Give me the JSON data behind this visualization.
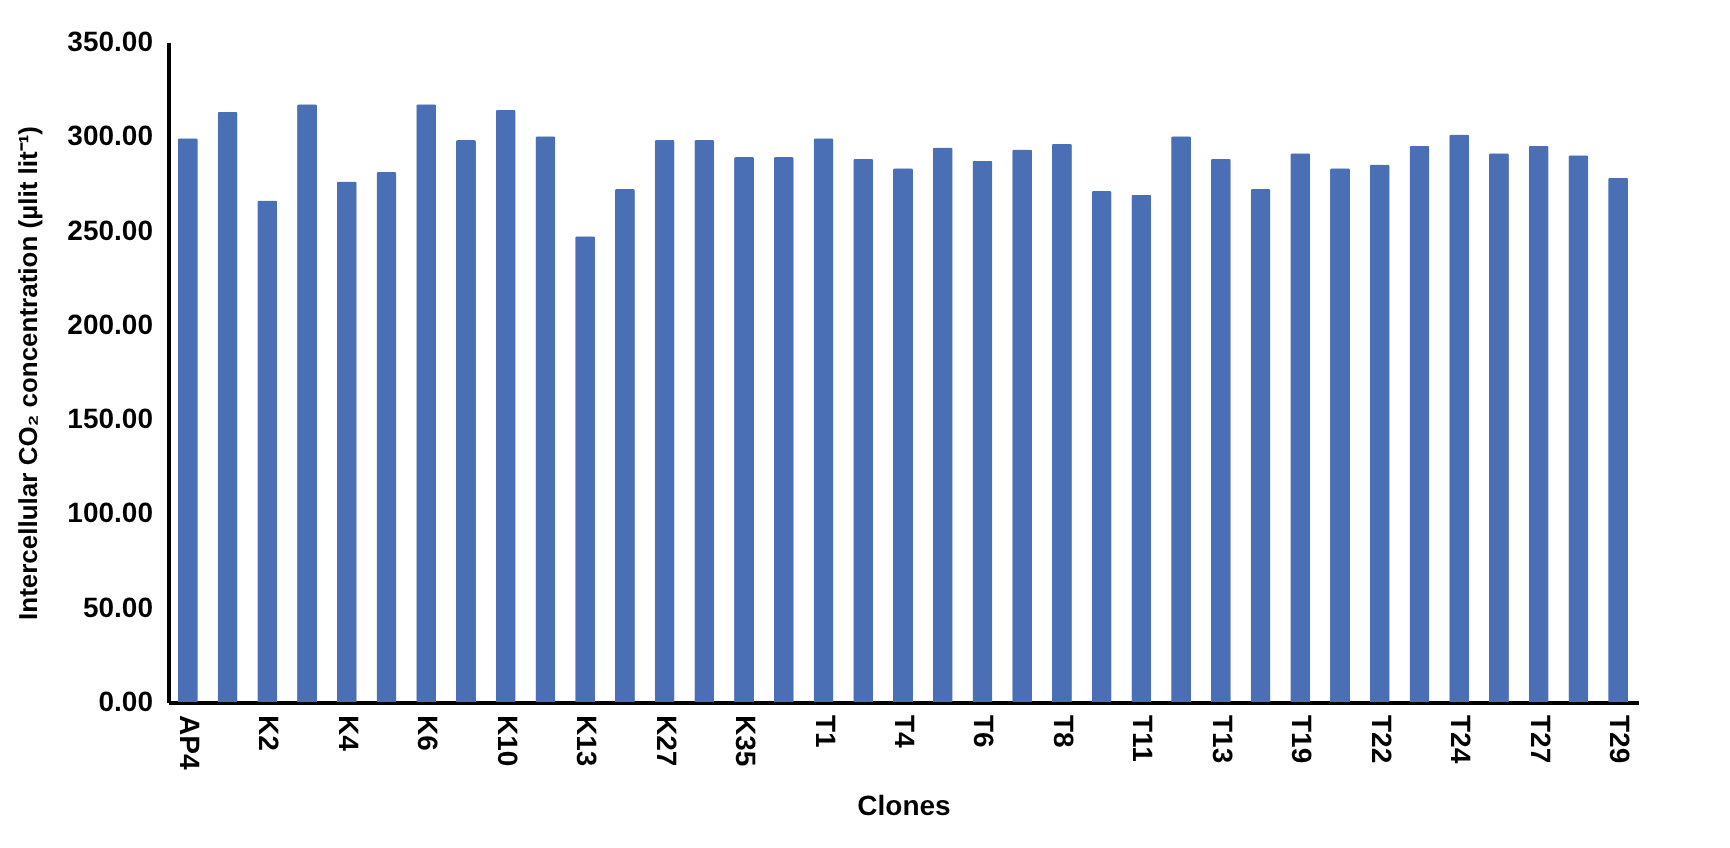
{
  "chart_data": {
    "type": "bar",
    "xlabel": "Clones",
    "ylabel": "Intercellular CO₂ concentration (µlit lit⁻¹)",
    "categories": [
      "AP4",
      null,
      "K2",
      null,
      "K4",
      null,
      "K6",
      null,
      "K10",
      null,
      "K13",
      null,
      "K27",
      null,
      "K35",
      null,
      "T1",
      null,
      "T4",
      null,
      "T6",
      null,
      "T8",
      null,
      "T11",
      null,
      "T13",
      null,
      "T19",
      null,
      "T22",
      null,
      "T24",
      null,
      "T27",
      null,
      "T29"
    ],
    "values": [
      299,
      313,
      266,
      317,
      276,
      281,
      317,
      298,
      314,
      300,
      247,
      272,
      298,
      298,
      289,
      289,
      299,
      288,
      283,
      294,
      287,
      293,
      296,
      271,
      269,
      300,
      288,
      272,
      291,
      283,
      285,
      295,
      301,
      291,
      295,
      290,
      278
    ],
    "color": "#4a6fb5",
    "ylim": [
      0,
      350
    ],
    "yticks": [
      {
        "value": 0,
        "label": "0.00"
      },
      {
        "value": 50,
        "label": "50.00"
      },
      {
        "value": 100,
        "label": "100.00"
      },
      {
        "value": 150,
        "label": "150.00"
      },
      {
        "value": 200,
        "label": "200.00"
      },
      {
        "value": 250,
        "label": "250.00"
      },
      {
        "value": 300,
        "label": "300.00"
      },
      {
        "value": 350,
        "label": "350.00"
      }
    ],
    "grid": false
  }
}
